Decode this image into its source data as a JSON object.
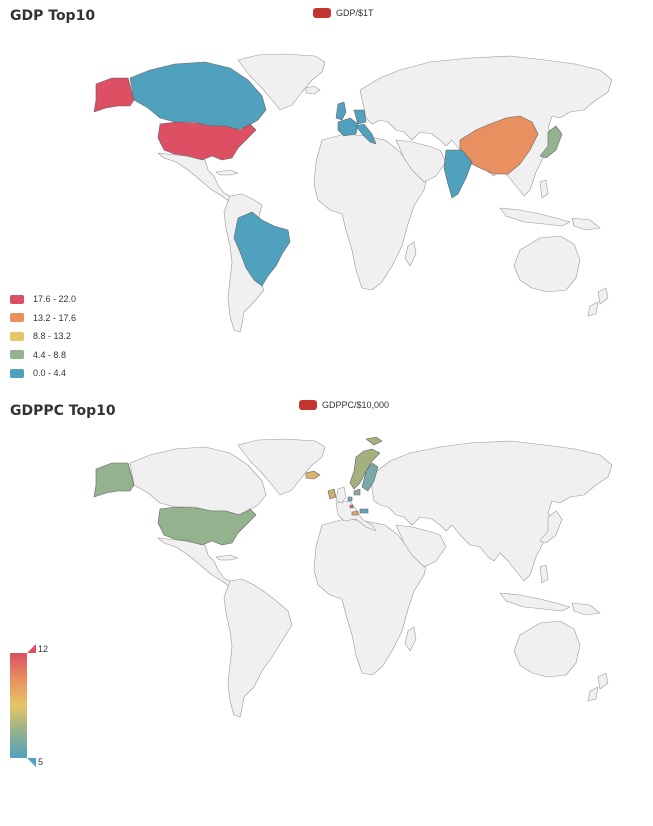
{
  "colors": {
    "land": "#f0f0f0",
    "border": "#999999",
    "legend_marker": "#c23531",
    "piece_colors": [
      "#dd4f63",
      "#e8905f",
      "#e5c565",
      "#94b28d",
      "#4fa1bd"
    ],
    "gradient": [
      "#dd4f63",
      "#e8905f",
      "#e5c565",
      "#94b28d",
      "#4fa1bd"
    ]
  },
  "map1": {
    "title": "GDP Top10",
    "legend": "GDP/$1T",
    "pieces": [
      {
        "label": "17.6 - 22.0",
        "color": "#dd4f63"
      },
      {
        "label": "13.2 - 17.6",
        "color": "#e8905f"
      },
      {
        "label": "8.8 - 13.2",
        "color": "#e5c565"
      },
      {
        "label": "4.4 - 8.8",
        "color": "#94b28d"
      },
      {
        "label": "0.0 - 4.4",
        "color": "#4fa1bd"
      }
    ],
    "regions": [
      {
        "name": "United States",
        "value": 21.4
      },
      {
        "name": "China",
        "value": 14.3
      },
      {
        "name": "Japan",
        "value": 5.1
      },
      {
        "name": "Germany",
        "value": 3.9
      },
      {
        "name": "India",
        "value": 2.9
      },
      {
        "name": "United Kingdom",
        "value": 2.8
      },
      {
        "name": "France",
        "value": 2.7
      },
      {
        "name": "Italy",
        "value": 2.0
      },
      {
        "name": "Brazil",
        "value": 1.8
      },
      {
        "name": "Canada",
        "value": 1.7
      }
    ]
  },
  "map2": {
    "title": "GDPPC Top10",
    "legend": "GDPPC/$10,000",
    "visual_max": "12",
    "visual_min": "5",
    "regions": [
      {
        "name": "Luxembourg",
        "value": 11.5
      },
      {
        "name": "Switzerland",
        "value": 8.2
      },
      {
        "name": "Norway",
        "value": 7.8
      },
      {
        "name": "Ireland",
        "value": 7.8
      },
      {
        "name": "Iceland",
        "value": 6.7
      },
      {
        "name": "United States",
        "value": 6.5
      },
      {
        "name": "Denmark",
        "value": 6.0
      },
      {
        "name": "Netherlands",
        "value": 5.2
      },
      {
        "name": "Austria",
        "value": 5.0
      },
      {
        "name": "Sweden",
        "value": 5.1
      }
    ]
  }
}
